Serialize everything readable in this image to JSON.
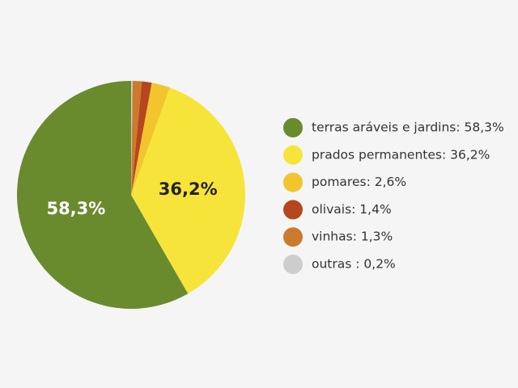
{
  "chart_data": {
    "type": "pie",
    "categories": [
      "terras aráveis e jardins: 58,3%",
      "prados permanentes: 36,2%",
      "pomares: 2,6%",
      "olivais: 1,4%",
      "vinhas: 1,3%",
      "outras : 0,2%"
    ],
    "values": [
      58.3,
      36.2,
      2.6,
      1.4,
      1.3,
      0.2
    ],
    "value_labels": [
      "58,3%",
      "36,2%",
      null,
      null,
      null,
      null
    ],
    "colors": [
      "#6a8a2e",
      "#f7e43a",
      "#f2c42e",
      "#b5461d",
      "#cc7a2b",
      "#cdcdcd"
    ],
    "label_colors": [
      "#ffffff",
      "#222222",
      null,
      null,
      null,
      null
    ],
    "legend": "right"
  }
}
